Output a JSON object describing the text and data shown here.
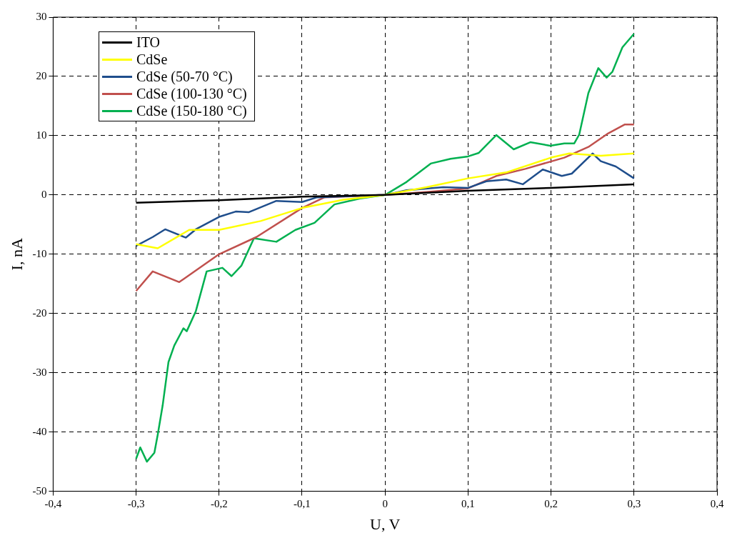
{
  "chart_data": {
    "type": "line",
    "xlabel": "U, V",
    "ylabel": "I, nA",
    "xlim": [
      -0.4,
      0.4
    ],
    "ylim": [
      -50,
      30
    ],
    "xticks": [
      {
        "value": -0.4,
        "label": "-0,4"
      },
      {
        "value": -0.3,
        "label": "-0,3"
      },
      {
        "value": -0.2,
        "label": "-0,2"
      },
      {
        "value": -0.1,
        "label": "-0,1"
      },
      0,
      {
        "value": 0.1,
        "label": "0,1"
      },
      {
        "value": 0.2,
        "label": "0,2"
      },
      {
        "value": 0.3,
        "label": "0,3"
      },
      {
        "value": 0.4,
        "label": "0,4"
      }
    ],
    "yticks": [
      -50,
      -40,
      -30,
      -20,
      -10,
      0,
      10,
      20,
      30
    ],
    "grid": true,
    "legend": "top left",
    "marker": "none",
    "series": [
      {
        "name": "ITO",
        "color": "#000000",
        "x": [
          -0.3,
          -0.2,
          -0.1,
          0,
          0.1,
          0.2,
          0.3
        ],
        "values": [
          -1.3,
          -0.9,
          -0.3,
          0,
          0.7,
          1.2,
          1.8
        ]
      },
      {
        "name": "CdSe",
        "color": "#ffff00",
        "x": [
          -0.3,
          -0.274,
          -0.236,
          -0.2,
          -0.15,
          -0.1,
          -0.05,
          0,
          0.05,
          0.1,
          0.146,
          0.2,
          0.222,
          0.26,
          0.3
        ],
        "values": [
          -8.3,
          -9,
          -5.9,
          -5.9,
          -4.4,
          -2.2,
          -0.8,
          0,
          1.3,
          2.8,
          3.8,
          6.3,
          7,
          6.6,
          7
        ]
      },
      {
        "name": "CdSe (50-70 °C)",
        "color": "#1f4e8c",
        "x": [
          -0.3,
          -0.28,
          -0.265,
          -0.24,
          -0.228,
          -0.2,
          -0.18,
          -0.164,
          -0.131,
          -0.1,
          -0.082,
          0,
          0.026,
          0.07,
          0.1,
          0.122,
          0.146,
          0.166,
          0.19,
          0.213,
          0.225,
          0.25,
          0.26,
          0.278,
          0.3
        ],
        "values": [
          -8.6,
          -7.1,
          -5.8,
          -7.2,
          -5.8,
          -3.7,
          -2.8,
          -2.9,
          -1,
          -1.2,
          -0.4,
          0,
          0.8,
          1.3,
          1.2,
          2.3,
          2.6,
          1.8,
          4.3,
          3.2,
          3.6,
          7,
          5.7,
          4.8,
          2.8
        ]
      },
      {
        "name": "CdSe (100-130 °C)",
        "color": "#c0504d",
        "x": [
          -0.3,
          -0.28,
          -0.248,
          -0.2,
          -0.155,
          -0.1,
          -0.073,
          0,
          0.05,
          0.1,
          0.134,
          0.169,
          0.216,
          0.245,
          0.269,
          0.289,
          0.3
        ],
        "values": [
          -16.2,
          -12.9,
          -14.7,
          -10,
          -7.1,
          -2.2,
          -0.4,
          0,
          0.5,
          1.1,
          3.2,
          4.4,
          6.3,
          8.1,
          10.4,
          11.9,
          11.9
        ]
      },
      {
        "name": "CdSe (150-180 °C)",
        "color": "#00b050",
        "x": [
          -0.3,
          -0.295,
          -0.287,
          -0.278,
          -0.274,
          -0.268,
          -0.261,
          -0.254,
          -0.243,
          -0.239,
          -0.228,
          -0.215,
          -0.196,
          -0.185,
          -0.173,
          -0.158,
          -0.131,
          -0.108,
          -0.085,
          -0.061,
          -0.03,
          0,
          0.026,
          0.055,
          0.079,
          0.1,
          0.113,
          0.134,
          0.155,
          0.175,
          0.199,
          0.216,
          0.228,
          0.234,
          0.245,
          0.257,
          0.267,
          0.274,
          0.286,
          0.3
        ],
        "values": [
          -44.5,
          -42.6,
          -45,
          -43.5,
          -40.5,
          -35.5,
          -28.2,
          -25.4,
          -22.5,
          -23,
          -19.6,
          -12.9,
          -12.3,
          -13.7,
          -11.9,
          -7.3,
          -7.9,
          -5.9,
          -4.7,
          -1.6,
          -0.6,
          0,
          2.2,
          5.3,
          6.1,
          6.5,
          7.1,
          10.1,
          7.7,
          8.9,
          8.3,
          8.7,
          8.7,
          10.2,
          17.2,
          21.4,
          19.8,
          20.8,
          24.9,
          27.2
        ]
      }
    ]
  }
}
